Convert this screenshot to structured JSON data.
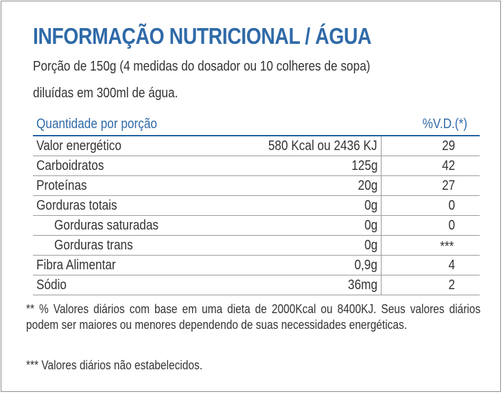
{
  "title": "INFORMAÇÃO NUTRICIONAL / ÁGUA",
  "portion": {
    "line1": "Porção de 150g (4 medidas do dosador ou 10 colheres de sopa)",
    "line2": "diluídas em 300ml de água."
  },
  "table": {
    "header": {
      "quantity": "Quantidade por porção",
      "dv": "%V.D.(*)"
    },
    "rows": [
      {
        "name": "Valor energético",
        "amount": "580 Kcal ou 2436 KJ",
        "dv": "29"
      },
      {
        "name": "Carboidratos",
        "amount": "125g",
        "dv": "42"
      },
      {
        "name": "Proteínas",
        "amount": "20g",
        "dv": "27"
      },
      {
        "name": "Gorduras totais",
        "amount": "0g",
        "dv": "0"
      },
      {
        "name": "Gorduras saturadas",
        "amount": "0g",
        "dv": "0"
      },
      {
        "name": "Gorduras trans",
        "amount": "0g",
        "dv": "***"
      },
      {
        "name": "Fibra Alimentar",
        "amount": "0,9g",
        "dv": "4"
      },
      {
        "name": "Sódio",
        "amount": "36mg",
        "dv": "2"
      }
    ]
  },
  "footnotes": {
    "daily_values": "** % Valores diários com base em uma dieta de 2000Kcal ou 8400KJ. Seus valores diários podem ser maiores ou menores dependendo de suas necessidades energéticas.",
    "not_established": "*** Valores diários não estabelecidos."
  },
  "colors": {
    "heading": "#2f6aa8",
    "text": "#333333",
    "rule": "#1f5f9e"
  }
}
